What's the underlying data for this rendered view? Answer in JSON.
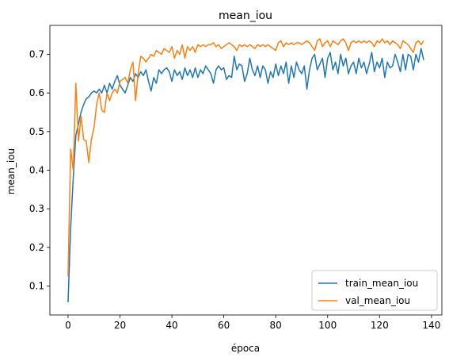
{
  "chart_data": {
    "type": "line",
    "title": "mean_iou",
    "xlabel": "época",
    "ylabel": "mean_iou",
    "xlim": [
      -7,
      144
    ],
    "ylim": [
      0.025,
      0.775
    ],
    "xticks": [
      0,
      20,
      40,
      60,
      80,
      100,
      120,
      140
    ],
    "yticks": [
      0.1,
      0.2,
      0.3,
      0.4,
      0.5,
      0.6,
      0.7
    ],
    "grid": false,
    "legend_position": "lower right",
    "series": [
      {
        "name": "train_mean_iou",
        "color": "#1f77b4",
        "points": [
          [
            0,
            0.058
          ],
          [
            1,
            0.25
          ],
          [
            2,
            0.38
          ],
          [
            3,
            0.49
          ],
          [
            4,
            0.52
          ],
          [
            5,
            0.55
          ],
          [
            6,
            0.57
          ],
          [
            7,
            0.585
          ],
          [
            8,
            0.59
          ],
          [
            9,
            0.6
          ],
          [
            10,
            0.605
          ],
          [
            11,
            0.6
          ],
          [
            12,
            0.61
          ],
          [
            13,
            0.6
          ],
          [
            14,
            0.62
          ],
          [
            15,
            0.6
          ],
          [
            16,
            0.625
          ],
          [
            17,
            0.61
          ],
          [
            18,
            0.63
          ],
          [
            19,
            0.645
          ],
          [
            20,
            0.62
          ],
          [
            21,
            0.61
          ],
          [
            22,
            0.6
          ],
          [
            23,
            0.62
          ],
          [
            24,
            0.64
          ],
          [
            25,
            0.63
          ],
          [
            26,
            0.65
          ],
          [
            27,
            0.64
          ],
          [
            28,
            0.655
          ],
          [
            29,
            0.645
          ],
          [
            30,
            0.66
          ],
          [
            31,
            0.63
          ],
          [
            32,
            0.605
          ],
          [
            33,
            0.64
          ],
          [
            34,
            0.625
          ],
          [
            35,
            0.66
          ],
          [
            36,
            0.65
          ],
          [
            37,
            0.66
          ],
          [
            38,
            0.665
          ],
          [
            39,
            0.655
          ],
          [
            40,
            0.63
          ],
          [
            41,
            0.66
          ],
          [
            42,
            0.645
          ],
          [
            43,
            0.655
          ],
          [
            44,
            0.635
          ],
          [
            45,
            0.665
          ],
          [
            46,
            0.645
          ],
          [
            47,
            0.66
          ],
          [
            48,
            0.64
          ],
          [
            49,
            0.665
          ],
          [
            50,
            0.64
          ],
          [
            51,
            0.66
          ],
          [
            52,
            0.65
          ],
          [
            53,
            0.67
          ],
          [
            54,
            0.66
          ],
          [
            55,
            0.65
          ],
          [
            56,
            0.625
          ],
          [
            57,
            0.66
          ],
          [
            58,
            0.67
          ],
          [
            59,
            0.66
          ],
          [
            60,
            0.665
          ],
          [
            61,
            0.635
          ],
          [
            62,
            0.645
          ],
          [
            63,
            0.64
          ],
          [
            64,
            0.695
          ],
          [
            65,
            0.66
          ],
          [
            66,
            0.675
          ],
          [
            67,
            0.67
          ],
          [
            68,
            0.63
          ],
          [
            69,
            0.65
          ],
          [
            70,
            0.69
          ],
          [
            71,
            0.66
          ],
          [
            72,
            0.645
          ],
          [
            73,
            0.67
          ],
          [
            74,
            0.64
          ],
          [
            75,
            0.67
          ],
          [
            76,
            0.66
          ],
          [
            77,
            0.625
          ],
          [
            78,
            0.655
          ],
          [
            79,
            0.64
          ],
          [
            80,
            0.675
          ],
          [
            81,
            0.645
          ],
          [
            82,
            0.67
          ],
          [
            83,
            0.65
          ],
          [
            84,
            0.68
          ],
          [
            85,
            0.625
          ],
          [
            86,
            0.67
          ],
          [
            87,
            0.64
          ],
          [
            88,
            0.68
          ],
          [
            89,
            0.66
          ],
          [
            90,
            0.65
          ],
          [
            91,
            0.67
          ],
          [
            92,
            0.61
          ],
          [
            93,
            0.66
          ],
          [
            94,
            0.69
          ],
          [
            95,
            0.7
          ],
          [
            96,
            0.66
          ],
          [
            97,
            0.675
          ],
          [
            98,
            0.69
          ],
          [
            99,
            0.64
          ],
          [
            100,
            0.69
          ],
          [
            101,
            0.705
          ],
          [
            102,
            0.66
          ],
          [
            103,
            0.68
          ],
          [
            104,
            0.65
          ],
          [
            105,
            0.7
          ],
          [
            106,
            0.67
          ],
          [
            107,
            0.69
          ],
          [
            108,
            0.65
          ],
          [
            109,
            0.67
          ],
          [
            110,
            0.68
          ],
          [
            111,
            0.65
          ],
          [
            112,
            0.69
          ],
          [
            113,
            0.665
          ],
          [
            114,
            0.68
          ],
          [
            115,
            0.65
          ],
          [
            116,
            0.675
          ],
          [
            117,
            0.705
          ],
          [
            118,
            0.655
          ],
          [
            119,
            0.68
          ],
          [
            120,
            0.665
          ],
          [
            121,
            0.69
          ],
          [
            122,
            0.64
          ],
          [
            123,
            0.68
          ],
          [
            124,
            0.665
          ],
          [
            125,
            0.67
          ],
          [
            126,
            0.7
          ],
          [
            127,
            0.68
          ],
          [
            128,
            0.655
          ],
          [
            129,
            0.7
          ],
          [
            130,
            0.66
          ],
          [
            131,
            0.7
          ],
          [
            132,
            0.695
          ],
          [
            133,
            0.66
          ],
          [
            134,
            0.7
          ],
          [
            135,
            0.68
          ],
          [
            136,
            0.715
          ],
          [
            137,
            0.685
          ]
        ]
      },
      {
        "name": "val_mean_iou",
        "color": "#ff7f0e",
        "points": [
          [
            0,
            0.125
          ],
          [
            1,
            0.455
          ],
          [
            2,
            0.4
          ],
          [
            3,
            0.625
          ],
          [
            4,
            0.475
          ],
          [
            5,
            0.54
          ],
          [
            6,
            0.48
          ],
          [
            7,
            0.475
          ],
          [
            8,
            0.42
          ],
          [
            9,
            0.48
          ],
          [
            10,
            0.51
          ],
          [
            11,
            0.57
          ],
          [
            12,
            0.6
          ],
          [
            13,
            0.555
          ],
          [
            14,
            0.55
          ],
          [
            15,
            0.6
          ],
          [
            16,
            0.58
          ],
          [
            17,
            0.6
          ],
          [
            18,
            0.61
          ],
          [
            19,
            0.6
          ],
          [
            20,
            0.63
          ],
          [
            21,
            0.635
          ],
          [
            22,
            0.64
          ],
          [
            23,
            0.625
          ],
          [
            24,
            0.66
          ],
          [
            25,
            0.68
          ],
          [
            26,
            0.58
          ],
          [
            27,
            0.65
          ],
          [
            28,
            0.695
          ],
          [
            29,
            0.69
          ],
          [
            30,
            0.68
          ],
          [
            31,
            0.69
          ],
          [
            32,
            0.7
          ],
          [
            33,
            0.695
          ],
          [
            34,
            0.71
          ],
          [
            35,
            0.705
          ],
          [
            36,
            0.7
          ],
          [
            37,
            0.715
          ],
          [
            38,
            0.71
          ],
          [
            39,
            0.705
          ],
          [
            40,
            0.72
          ],
          [
            41,
            0.69
          ],
          [
            42,
            0.71
          ],
          [
            43,
            0.7
          ],
          [
            44,
            0.725
          ],
          [
            45,
            0.69
          ],
          [
            46,
            0.72
          ],
          [
            47,
            0.71
          ],
          [
            48,
            0.72
          ],
          [
            49,
            0.705
          ],
          [
            50,
            0.725
          ],
          [
            51,
            0.72
          ],
          [
            52,
            0.725
          ],
          [
            53,
            0.72
          ],
          [
            54,
            0.725
          ],
          [
            55,
            0.725
          ],
          [
            56,
            0.73
          ],
          [
            57,
            0.72
          ],
          [
            58,
            0.725
          ],
          [
            59,
            0.715
          ],
          [
            60,
            0.72
          ],
          [
            61,
            0.725
          ],
          [
            62,
            0.73
          ],
          [
            63,
            0.725
          ],
          [
            64,
            0.72
          ],
          [
            65,
            0.71
          ],
          [
            66,
            0.725
          ],
          [
            67,
            0.72
          ],
          [
            68,
            0.725
          ],
          [
            69,
            0.72
          ],
          [
            70,
            0.725
          ],
          [
            71,
            0.72
          ],
          [
            72,
            0.715
          ],
          [
            73,
            0.725
          ],
          [
            74,
            0.72
          ],
          [
            75,
            0.725
          ],
          [
            76,
            0.72
          ],
          [
            77,
            0.725
          ],
          [
            78,
            0.72
          ],
          [
            79,
            0.715
          ],
          [
            80,
            0.71
          ],
          [
            81,
            0.73
          ],
          [
            82,
            0.735
          ],
          [
            83,
            0.72
          ],
          [
            84,
            0.73
          ],
          [
            85,
            0.725
          ],
          [
            86,
            0.73
          ],
          [
            87,
            0.725
          ],
          [
            88,
            0.73
          ],
          [
            89,
            0.73
          ],
          [
            90,
            0.725
          ],
          [
            91,
            0.73
          ],
          [
            92,
            0.735
          ],
          [
            93,
            0.73
          ],
          [
            94,
            0.72
          ],
          [
            95,
            0.71
          ],
          [
            96,
            0.735
          ],
          [
            97,
            0.74
          ],
          [
            98,
            0.72
          ],
          [
            99,
            0.73
          ],
          [
            100,
            0.735
          ],
          [
            101,
            0.72
          ],
          [
            102,
            0.735
          ],
          [
            103,
            0.73
          ],
          [
            104,
            0.725
          ],
          [
            105,
            0.735
          ],
          [
            106,
            0.74
          ],
          [
            107,
            0.73
          ],
          [
            108,
            0.71
          ],
          [
            109,
            0.73
          ],
          [
            110,
            0.735
          ],
          [
            111,
            0.73
          ],
          [
            112,
            0.735
          ],
          [
            113,
            0.73
          ],
          [
            114,
            0.735
          ],
          [
            115,
            0.73
          ],
          [
            116,
            0.735
          ],
          [
            117,
            0.73
          ],
          [
            118,
            0.72
          ],
          [
            119,
            0.735
          ],
          [
            120,
            0.73
          ],
          [
            121,
            0.74
          ],
          [
            122,
            0.73
          ],
          [
            123,
            0.735
          ],
          [
            124,
            0.725
          ],
          [
            125,
            0.735
          ],
          [
            126,
            0.73
          ],
          [
            127,
            0.725
          ],
          [
            128,
            0.715
          ],
          [
            129,
            0.735
          ],
          [
            130,
            0.73
          ],
          [
            131,
            0.725
          ],
          [
            132,
            0.715
          ],
          [
            133,
            0.705
          ],
          [
            134,
            0.73
          ],
          [
            135,
            0.735
          ],
          [
            136,
            0.725
          ],
          [
            137,
            0.735
          ]
        ]
      }
    ]
  }
}
